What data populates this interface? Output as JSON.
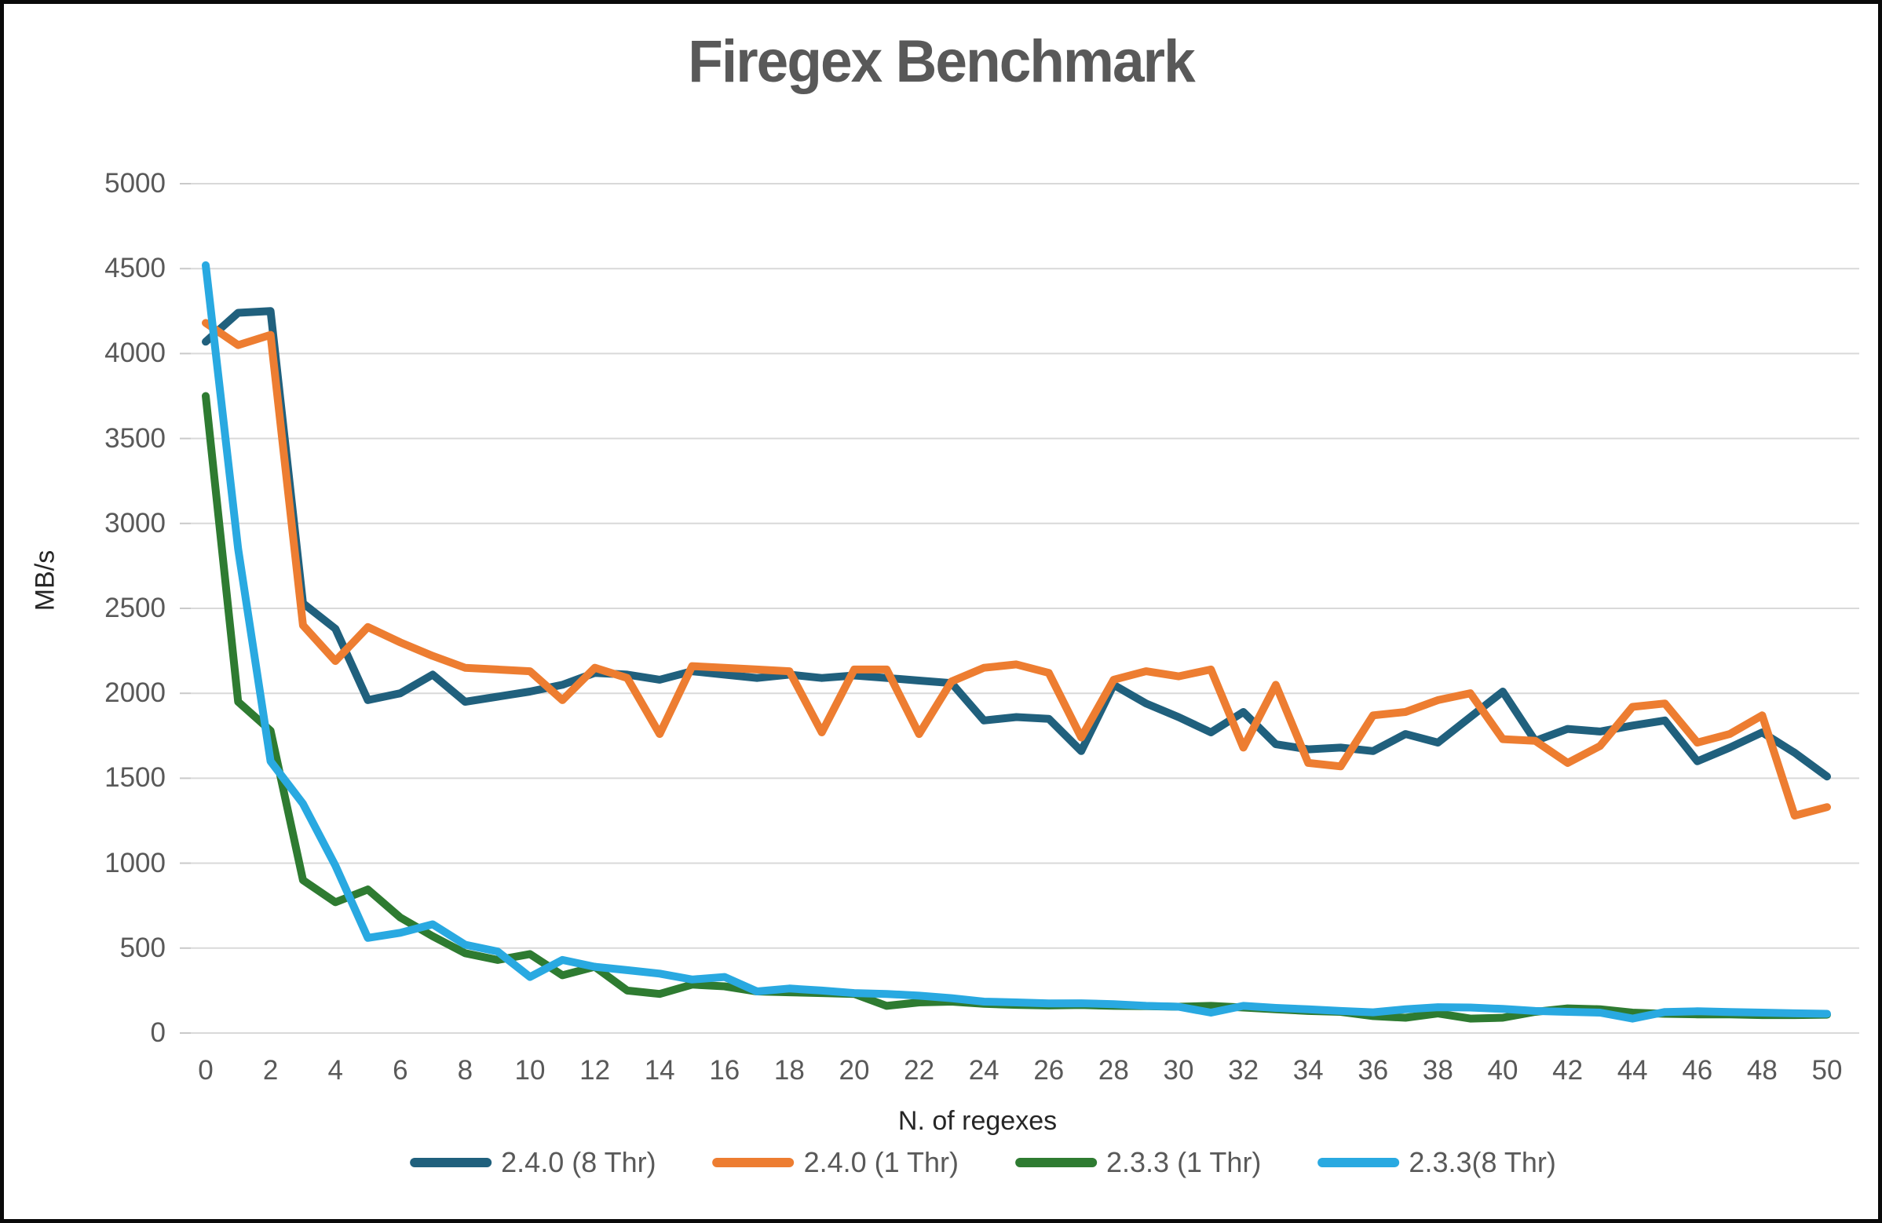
{
  "title": "Firegex Benchmark",
  "chart_data": {
    "type": "line",
    "title": "Firegex Benchmark",
    "xlabel": "N. of regexes",
    "ylabel": "MB/s",
    "xlim": [
      0,
      50
    ],
    "ylim": [
      0,
      5000
    ],
    "grid": true,
    "legend_position": "bottom",
    "x_ticks": [
      0,
      2,
      4,
      6,
      8,
      10,
      12,
      14,
      16,
      18,
      20,
      22,
      24,
      26,
      28,
      30,
      32,
      34,
      36,
      38,
      40,
      42,
      44,
      46,
      48,
      50
    ],
    "y_ticks": [
      0,
      500,
      1000,
      1500,
      2000,
      2500,
      3000,
      3500,
      4000,
      4500,
      5000
    ],
    "x": [
      0,
      1,
      2,
      3,
      4,
      5,
      6,
      7,
      8,
      9,
      10,
      11,
      12,
      13,
      14,
      15,
      16,
      17,
      18,
      19,
      20,
      21,
      22,
      23,
      24,
      25,
      26,
      27,
      28,
      29,
      30,
      31,
      32,
      33,
      34,
      35,
      36,
      37,
      38,
      39,
      40,
      41,
      42,
      43,
      44,
      45,
      46,
      47,
      48,
      49,
      50
    ],
    "series": [
      {
        "name": "2.4.0 (8 Thr)",
        "color": "#20607D",
        "values": [
          4070,
          4240,
          4250,
          2530,
          2380,
          1960,
          2000,
          2110,
          1950,
          1980,
          2010,
          2050,
          2120,
          2110,
          2080,
          2130,
          2110,
          2090,
          2110,
          2090,
          2105,
          2090,
          2075,
          2060,
          1840,
          1860,
          1850,
          1660,
          2050,
          1940,
          1860,
          1770,
          1890,
          1700,
          1670,
          1680,
          1660,
          1760,
          1710,
          1860,
          2010,
          1720,
          1790,
          1775,
          1810,
          1840,
          1600,
          1680,
          1770,
          1650,
          1510
        ]
      },
      {
        "name": "2.4.0 (1 Thr)",
        "color": "#ED7D31",
        "values": [
          4180,
          4050,
          4110,
          2400,
          2190,
          2390,
          2300,
          2220,
          2150,
          2140,
          2130,
          1960,
          2150,
          2090,
          1760,
          2160,
          2150,
          2140,
          2130,
          1770,
          2140,
          2140,
          1760,
          2070,
          2150,
          2170,
          2120,
          1740,
          2080,
          2130,
          2100,
          2140,
          1680,
          2050,
          1590,
          1570,
          1870,
          1890,
          1960,
          2000,
          1730,
          1720,
          1590,
          1690,
          1920,
          1940,
          1710,
          1760,
          1870,
          1280,
          1330
        ]
      },
      {
        "name": "2.3.3 (1 Thr)",
        "color": "#2E7B31",
        "values": [
          3750,
          1950,
          1780,
          900,
          770,
          845,
          680,
          570,
          470,
          430,
          465,
          340,
          390,
          250,
          230,
          285,
          275,
          245,
          240,
          235,
          230,
          160,
          180,
          185,
          172,
          166,
          162,
          165,
          160,
          158,
          155,
          160,
          150,
          140,
          130,
          125,
          100,
          90,
          115,
          85,
          90,
          125,
          145,
          140,
          120,
          113,
          110,
          110,
          106,
          106,
          108
        ]
      },
      {
        "name": "2.3.3(8 Thr)",
        "color": "#29A9E1",
        "values": [
          4520,
          2850,
          1600,
          1350,
          985,
          560,
          590,
          640,
          520,
          480,
          330,
          430,
          390,
          370,
          350,
          315,
          330,
          245,
          262,
          250,
          235,
          230,
          220,
          205,
          185,
          180,
          174,
          175,
          170,
          160,
          155,
          120,
          160,
          148,
          140,
          130,
          122,
          140,
          152,
          150,
          142,
          130,
          125,
          120,
          85,
          124,
          128,
          124,
          120,
          116,
          113
        ]
      }
    ]
  },
  "colors": {
    "gridline": "#D9D9D9",
    "tick_mark": "#C9C9C9",
    "tick_text": "#595959",
    "title_text": "#595959",
    "axis_title_text": "#262626",
    "border": "#0a0a0a",
    "background": "#FFFFFF"
  }
}
